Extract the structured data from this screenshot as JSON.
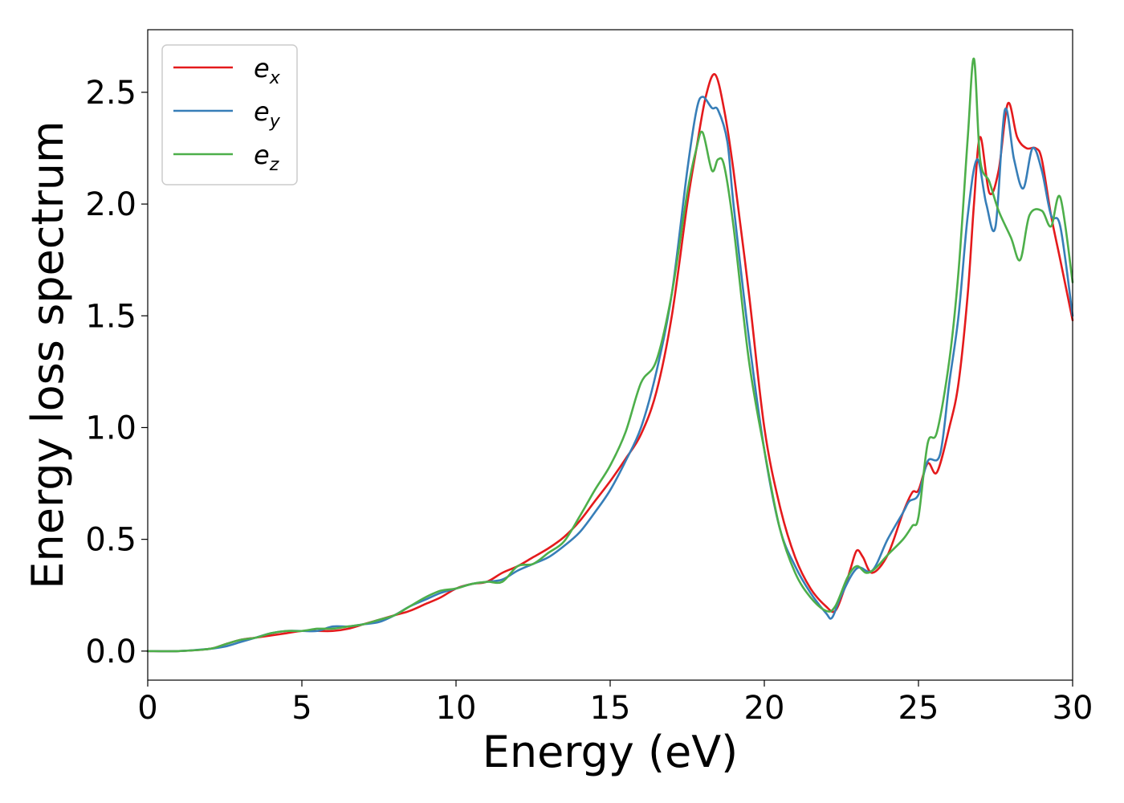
{
  "chart_data": {
    "type": "line",
    "title": "",
    "xlabel": "Energy (eV)",
    "ylabel": "Energy loss spectrum",
    "xlim": [
      0,
      30
    ],
    "ylim": [
      -0.13,
      2.78
    ],
    "xticks": [
      "0",
      "5",
      "10",
      "15",
      "20",
      "25",
      "30"
    ],
    "yticks": [
      "0.0",
      "0.5",
      "1.0",
      "1.5",
      "2.0",
      "2.5"
    ],
    "grid": false,
    "legend": {
      "placement": "top-left"
    },
    "series": [
      {
        "name": "e",
        "sub": "x",
        "color": "#e41a1c",
        "points": [
          [
            0,
            0
          ],
          [
            1,
            0
          ],
          [
            2,
            0.01
          ],
          [
            2.5,
            0.03
          ],
          [
            3,
            0.05
          ],
          [
            3.5,
            0.06
          ],
          [
            4,
            0.07
          ],
          [
            4.5,
            0.08
          ],
          [
            5,
            0.09
          ],
          [
            5.5,
            0.09
          ],
          [
            6,
            0.09
          ],
          [
            6.5,
            0.1
          ],
          [
            7,
            0.12
          ],
          [
            7.5,
            0.14
          ],
          [
            8,
            0.16
          ],
          [
            8.5,
            0.18
          ],
          [
            9,
            0.21
          ],
          [
            9.5,
            0.24
          ],
          [
            10,
            0.28
          ],
          [
            10.5,
            0.3
          ],
          [
            11,
            0.31
          ],
          [
            11.5,
            0.35
          ],
          [
            12,
            0.38
          ],
          [
            12.5,
            0.42
          ],
          [
            13,
            0.46
          ],
          [
            13.5,
            0.51
          ],
          [
            14,
            0.58
          ],
          [
            14.5,
            0.67
          ],
          [
            15,
            0.76
          ],
          [
            15.5,
            0.86
          ],
          [
            16,
            0.97
          ],
          [
            16.5,
            1.16
          ],
          [
            17,
            1.5
          ],
          [
            17.5,
            2.0
          ],
          [
            17.8,
            2.25
          ],
          [
            18.1,
            2.48
          ],
          [
            18.4,
            2.58
          ],
          [
            18.7,
            2.42
          ],
          [
            19,
            2.15
          ],
          [
            19.5,
            1.6
          ],
          [
            20,
            1.0
          ],
          [
            20.5,
            0.65
          ],
          [
            21,
            0.42
          ],
          [
            21.5,
            0.28
          ],
          [
            22,
            0.2
          ],
          [
            22.3,
            0.18
          ],
          [
            22.6,
            0.28
          ],
          [
            22.8,
            0.37
          ],
          [
            23,
            0.45
          ],
          [
            23.2,
            0.42
          ],
          [
            23.5,
            0.35
          ],
          [
            24,
            0.43
          ],
          [
            24.5,
            0.62
          ],
          [
            24.8,
            0.71
          ],
          [
            25,
            0.72
          ],
          [
            25.3,
            0.84
          ],
          [
            25.6,
            0.8
          ],
          [
            26,
            1.0
          ],
          [
            26.3,
            1.2
          ],
          [
            26.6,
            1.6
          ],
          [
            26.8,
            2.0
          ],
          [
            27,
            2.3
          ],
          [
            27.3,
            2.05
          ],
          [
            27.6,
            2.15
          ],
          [
            27.9,
            2.45
          ],
          [
            28.2,
            2.3
          ],
          [
            28.5,
            2.25
          ],
          [
            28.8,
            2.25
          ],
          [
            29,
            2.2
          ],
          [
            29.3,
            1.95
          ],
          [
            29.6,
            1.75
          ],
          [
            30,
            1.48
          ]
        ]
      },
      {
        "name": "e",
        "sub": "y",
        "color": "#377eb8",
        "points": [
          [
            0,
            0
          ],
          [
            1,
            0
          ],
          [
            2,
            0.01
          ],
          [
            2.5,
            0.02
          ],
          [
            3,
            0.04
          ],
          [
            3.5,
            0.06
          ],
          [
            4,
            0.08
          ],
          [
            4.5,
            0.09
          ],
          [
            5,
            0.09
          ],
          [
            5.5,
            0.09
          ],
          [
            6,
            0.11
          ],
          [
            6.5,
            0.11
          ],
          [
            7,
            0.12
          ],
          [
            7.5,
            0.13
          ],
          [
            8,
            0.16
          ],
          [
            8.5,
            0.2
          ],
          [
            9,
            0.23
          ],
          [
            9.5,
            0.26
          ],
          [
            10,
            0.28
          ],
          [
            10.5,
            0.3
          ],
          [
            11,
            0.31
          ],
          [
            11.5,
            0.32
          ],
          [
            12,
            0.36
          ],
          [
            12.5,
            0.39
          ],
          [
            13,
            0.42
          ],
          [
            13.5,
            0.47
          ],
          [
            14,
            0.53
          ],
          [
            14.5,
            0.62
          ],
          [
            15,
            0.72
          ],
          [
            15.5,
            0.85
          ],
          [
            16,
            1.0
          ],
          [
            16.5,
            1.25
          ],
          [
            17,
            1.6
          ],
          [
            17.5,
            2.15
          ],
          [
            17.8,
            2.42
          ],
          [
            18,
            2.48
          ],
          [
            18.3,
            2.43
          ],
          [
            18.5,
            2.42
          ],
          [
            18.8,
            2.28
          ],
          [
            19,
            2.0
          ],
          [
            19.5,
            1.4
          ],
          [
            20,
            0.9
          ],
          [
            20.5,
            0.55
          ],
          [
            21,
            0.38
          ],
          [
            21.5,
            0.26
          ],
          [
            22,
            0.17
          ],
          [
            22.2,
            0.15
          ],
          [
            22.5,
            0.25
          ],
          [
            23,
            0.37
          ],
          [
            23.5,
            0.36
          ],
          [
            24,
            0.5
          ],
          [
            24.5,
            0.62
          ],
          [
            24.7,
            0.67
          ],
          [
            25,
            0.7
          ],
          [
            25.3,
            0.85
          ],
          [
            25.7,
            0.88
          ],
          [
            26,
            1.2
          ],
          [
            26.3,
            1.5
          ],
          [
            26.6,
            1.95
          ],
          [
            26.9,
            2.2
          ],
          [
            27.2,
            2.0
          ],
          [
            27.5,
            1.9
          ],
          [
            27.8,
            2.42
          ],
          [
            28.1,
            2.2
          ],
          [
            28.4,
            2.07
          ],
          [
            28.7,
            2.25
          ],
          [
            29,
            2.15
          ],
          [
            29.3,
            1.95
          ],
          [
            29.6,
            1.9
          ],
          [
            30,
            1.5
          ]
        ]
      },
      {
        "name": "e",
        "sub": "z",
        "color": "#4daf4a",
        "points": [
          [
            0,
            0
          ],
          [
            1,
            0
          ],
          [
            2,
            0.01
          ],
          [
            2.5,
            0.03
          ],
          [
            3,
            0.05
          ],
          [
            3.5,
            0.06
          ],
          [
            4,
            0.08
          ],
          [
            4.5,
            0.09
          ],
          [
            5,
            0.09
          ],
          [
            5.5,
            0.1
          ],
          [
            6,
            0.1
          ],
          [
            6.5,
            0.11
          ],
          [
            7,
            0.12
          ],
          [
            7.5,
            0.14
          ],
          [
            8,
            0.16
          ],
          [
            8.5,
            0.2
          ],
          [
            9,
            0.24
          ],
          [
            9.5,
            0.27
          ],
          [
            10,
            0.28
          ],
          [
            10.5,
            0.3
          ],
          [
            11,
            0.31
          ],
          [
            11.5,
            0.31
          ],
          [
            12,
            0.38
          ],
          [
            12.5,
            0.39
          ],
          [
            13,
            0.44
          ],
          [
            13.5,
            0.49
          ],
          [
            14,
            0.6
          ],
          [
            14.5,
            0.72
          ],
          [
            15,
            0.83
          ],
          [
            15.5,
            0.98
          ],
          [
            16,
            1.2
          ],
          [
            16.5,
            1.3
          ],
          [
            17,
            1.6
          ],
          [
            17.5,
            2.05
          ],
          [
            17.8,
            2.25
          ],
          [
            18,
            2.32
          ],
          [
            18.3,
            2.15
          ],
          [
            18.5,
            2.2
          ],
          [
            18.7,
            2.17
          ],
          [
            19,
            1.9
          ],
          [
            19.5,
            1.3
          ],
          [
            20,
            0.9
          ],
          [
            20.5,
            0.55
          ],
          [
            21,
            0.35
          ],
          [
            21.5,
            0.24
          ],
          [
            22,
            0.18
          ],
          [
            22.3,
            0.2
          ],
          [
            22.7,
            0.33
          ],
          [
            23,
            0.38
          ],
          [
            23.3,
            0.35
          ],
          [
            23.6,
            0.37
          ],
          [
            24,
            0.43
          ],
          [
            24.5,
            0.5
          ],
          [
            24.8,
            0.56
          ],
          [
            25,
            0.6
          ],
          [
            25.3,
            0.93
          ],
          [
            25.6,
            0.98
          ],
          [
            26,
            1.3
          ],
          [
            26.3,
            1.7
          ],
          [
            26.6,
            2.3
          ],
          [
            26.8,
            2.65
          ],
          [
            27,
            2.2
          ],
          [
            27.3,
            2.1
          ],
          [
            27.6,
            1.97
          ],
          [
            28,
            1.85
          ],
          [
            28.3,
            1.75
          ],
          [
            28.6,
            1.95
          ],
          [
            29,
            1.97
          ],
          [
            29.3,
            1.9
          ],
          [
            29.6,
            2.03
          ],
          [
            30,
            1.65
          ]
        ]
      }
    ]
  }
}
